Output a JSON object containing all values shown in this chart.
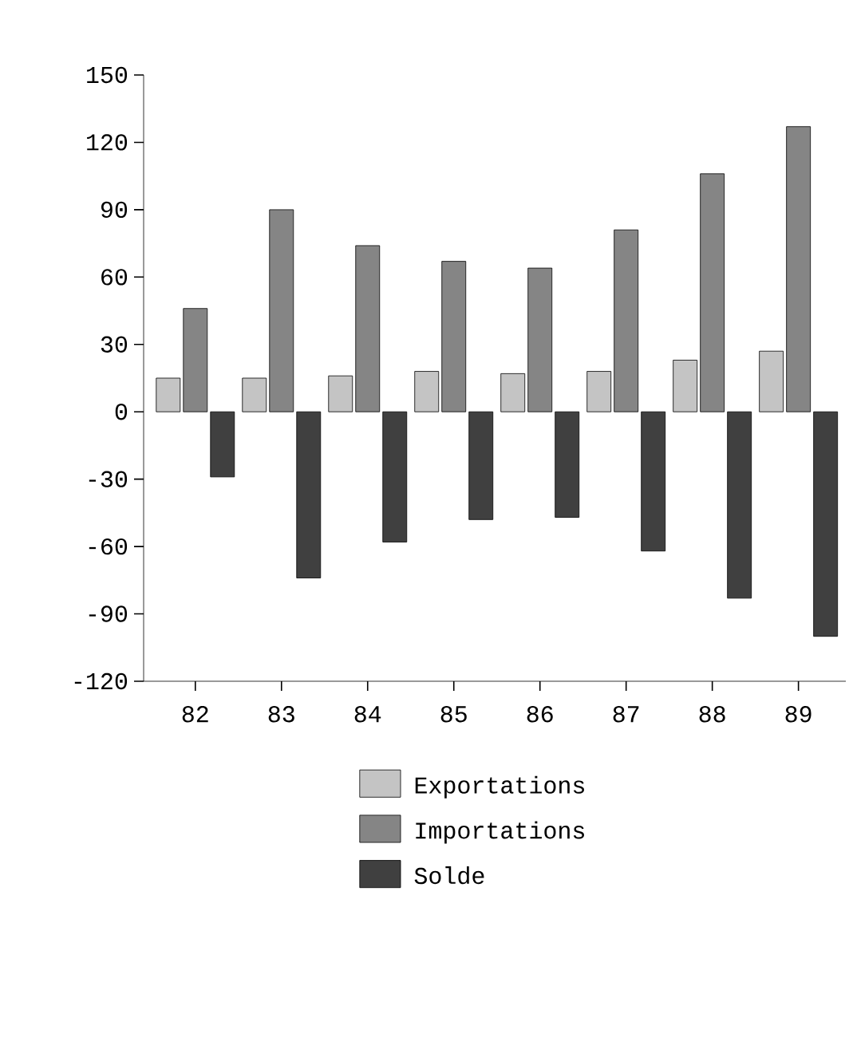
{
  "chart_data": {
    "type": "bar",
    "categories": [
      "82",
      "83",
      "84",
      "85",
      "86",
      "87",
      "88",
      "89"
    ],
    "series": [
      {
        "name": "Exportations",
        "color": "#c4c4c4",
        "values": [
          15,
          15,
          16,
          18,
          17,
          18,
          23,
          27
        ]
      },
      {
        "name": "Importations",
        "color": "#858585",
        "values": [
          46,
          90,
          74,
          67,
          64,
          81,
          106,
          127
        ]
      },
      {
        "name": "Solde",
        "color": "#404040",
        "values": [
          -29,
          -74,
          -58,
          -48,
          -47,
          -62,
          -83,
          -100
        ]
      }
    ],
    "ylim": [
      -120,
      150
    ],
    "yticks": [
      -120,
      -90,
      -60,
      -30,
      0,
      30,
      60,
      90,
      120,
      150
    ],
    "legend": "bottom"
  }
}
